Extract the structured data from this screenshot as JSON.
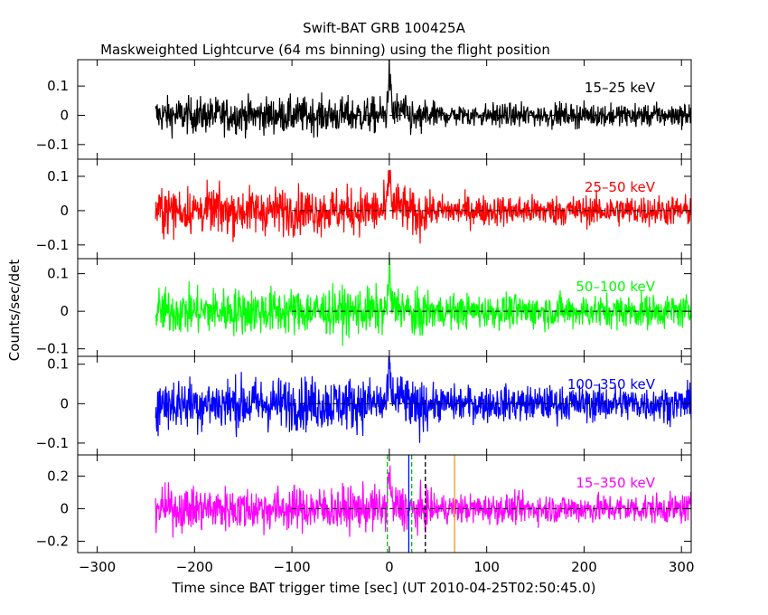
{
  "chart_data": {
    "type": "line",
    "title": "Swift-BAT GRB 100425A",
    "subtitle": "Maskweighted Lightcurve (64 ms binning) using the flight position",
    "xlabel": "Time since BAT trigger time [sec] (UT 2010-04-25T02:50:45.0)",
    "ylabel": "Counts/sec/det",
    "xlim": [
      -320,
      310
    ],
    "x_ticks": [
      -300,
      -200,
      -100,
      0,
      100,
      200,
      300
    ],
    "data_x_range": [
      -240,
      310
    ],
    "zero_line_x_range": [
      -100,
      310
    ],
    "panels": [
      {
        "name": "15–25 keV",
        "color": "#000000",
        "ylim": [
          -0.15,
          0.19
        ],
        "y_ticks": [
          0.1,
          0,
          -0.1
        ],
        "y_tick_labels": [
          "0.1",
          "0",
          "−0.1"
        ],
        "noise_amplitude_pre": 0.055,
        "noise_amplitude_post": 0.035,
        "spike": {
          "x": 0,
          "peak": 0.19
        }
      },
      {
        "name": "25–50 keV",
        "color": "#ff0000",
        "ylim": [
          -0.14,
          0.15
        ],
        "y_ticks": [
          0.1,
          0,
          -0.1
        ],
        "y_tick_labels": [
          "0.1",
          "0",
          "−0.1"
        ],
        "noise_amplitude_pre": 0.06,
        "noise_amplitude_post": 0.04,
        "spike": {
          "x": 0,
          "peak": 0.14
        }
      },
      {
        "name": "50–100 keV",
        "color": "#00ff00",
        "ylim": [
          -0.12,
          0.14
        ],
        "y_ticks": [
          0.1,
          0,
          -0.1
        ],
        "y_tick_labels": [
          "0.1",
          "0",
          "−0.1"
        ],
        "noise_amplitude_pre": 0.055,
        "noise_amplitude_post": 0.04,
        "spike": {
          "x": 0,
          "peak": 0.12
        }
      },
      {
        "name": "100–350 keV",
        "color": "#0000ff",
        "ylim": [
          -0.13,
          0.12
        ],
        "y_ticks": [
          0.1,
          0,
          -0.1
        ],
        "y_tick_labels": [
          "0.1",
          "0",
          "−0.1"
        ],
        "noise_amplitude_pre": 0.06,
        "noise_amplitude_post": 0.04,
        "spike": {
          "x": 0,
          "peak": 0.11
        }
      },
      {
        "name": "15–350 keV",
        "color": "#ff00ff",
        "ylim": [
          -0.27,
          0.33
        ],
        "y_ticks": [
          0.2,
          0,
          -0.2
        ],
        "y_tick_labels": [
          "0.2",
          "0",
          "−0.2"
        ],
        "noise_amplitude_pre": 0.12,
        "noise_amplitude_post": 0.08,
        "spike": {
          "x": 0,
          "peak": 0.3
        }
      }
    ],
    "markers": [
      {
        "x": -2,
        "color": "#00c000",
        "style": "dashed"
      },
      {
        "x": 20,
        "color": "#0000ff",
        "style": "solid"
      },
      {
        "x": 23,
        "color": "#00c000",
        "style": "dashed"
      },
      {
        "x": 37,
        "color": "#000000",
        "style": "dashed"
      },
      {
        "x": 67,
        "color": "#ff9900",
        "style": "solid"
      }
    ]
  }
}
